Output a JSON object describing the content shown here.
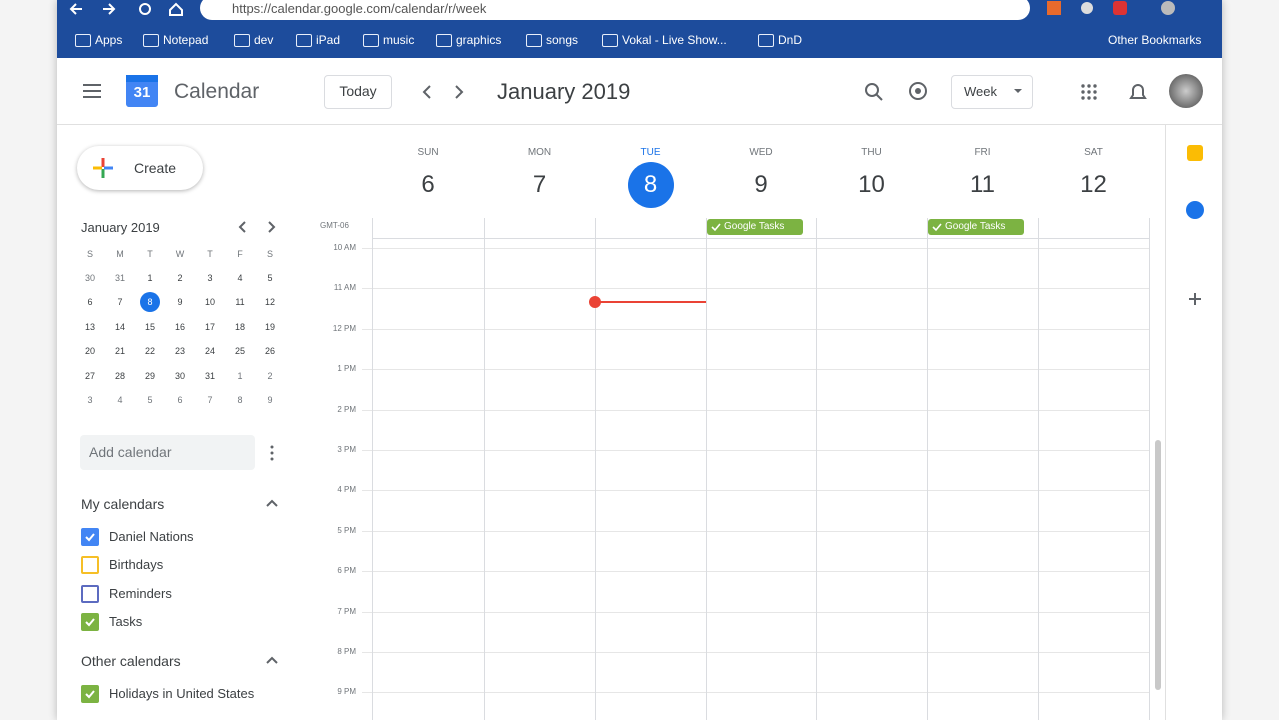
{
  "browser": {
    "url": "https://calendar.google.com/calendar/r/week",
    "bookmarks": [
      "Apps",
      "Notepad",
      "dev",
      "iPad",
      "music",
      "graphics",
      "songs",
      "Vokal - Live Show...",
      "DnD"
    ],
    "other_bookmarks": "Other Bookmarks"
  },
  "header": {
    "logo_day": "31",
    "app_name": "Calendar",
    "today_button": "Today",
    "period": "January 2019",
    "view": "Week"
  },
  "sidebar": {
    "create": "Create",
    "mini_calendar": {
      "title": "January 2019",
      "weekdays": [
        "S",
        "M",
        "T",
        "W",
        "T",
        "F",
        "S"
      ],
      "weeks": [
        [
          30,
          31,
          1,
          2,
          3,
          4,
          5
        ],
        [
          6,
          7,
          8,
          9,
          10,
          11,
          12
        ],
        [
          13,
          14,
          15,
          16,
          17,
          18,
          19
        ],
        [
          20,
          21,
          22,
          23,
          24,
          25,
          26
        ],
        [
          27,
          28,
          29,
          30,
          31,
          1,
          2
        ],
        [
          3,
          4,
          5,
          6,
          7,
          8,
          9
        ]
      ]
    },
    "add_calendar": "Add calendar",
    "my_calendars": {
      "title": "My calendars",
      "items": [
        {
          "label": "Daniel Nations",
          "color": "#4285f4",
          "checked": true
        },
        {
          "label": "Birthdays",
          "color": "#f6bf26",
          "checked": false
        },
        {
          "label": "Reminders",
          "color": "#5c6bc0",
          "checked": false
        },
        {
          "label": "Tasks",
          "color": "#7cb342",
          "checked": true
        }
      ]
    },
    "other_calendars": {
      "title": "Other calendars",
      "items": [
        {
          "label": "Holidays in United States",
          "color": "#7cb342",
          "checked": true
        }
      ]
    }
  },
  "week": {
    "timezone": "GMT-06",
    "days": [
      {
        "weekday": "SUN",
        "date": 6
      },
      {
        "weekday": "MON",
        "date": 7
      },
      {
        "weekday": "TUE",
        "date": 8
      },
      {
        "weekday": "WED",
        "date": 9,
        "events": [
          "Google Tasks"
        ]
      },
      {
        "weekday": "THU",
        "date": 10
      },
      {
        "weekday": "FRI",
        "date": 11,
        "events": [
          "Google Tasks"
        ]
      },
      {
        "weekday": "SAT",
        "date": 12
      }
    ],
    "hours": [
      "10 AM",
      "11 AM",
      "12 PM",
      "1 PM",
      "2 PM",
      "3 PM",
      "4 PM",
      "5 PM",
      "6 PM",
      "7 PM",
      "8 PM",
      "9 PM"
    ]
  }
}
